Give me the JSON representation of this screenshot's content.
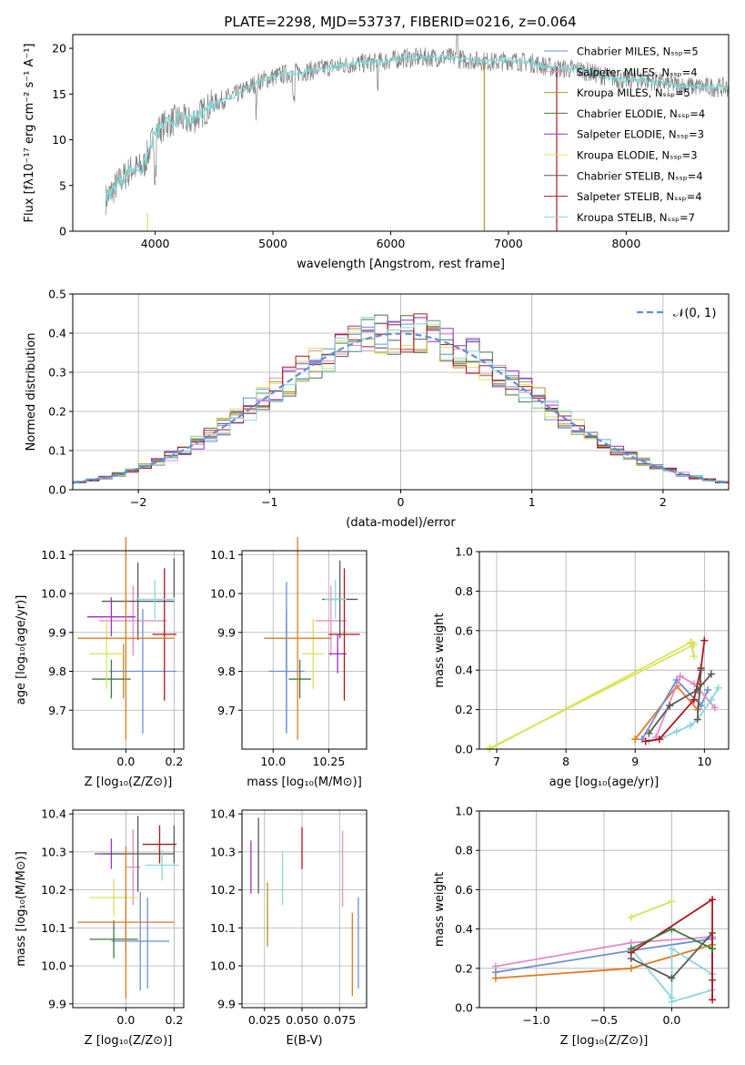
{
  "colors": {
    "cm": "#6a8fd8",
    "sm": "#e38cc5",
    "km": "#b8962b",
    "ce": "#3d7a3d",
    "se": "#9a2fc4",
    "ke": "#d8e35a",
    "cs": "#5a5a5a",
    "ss": "#b0141c",
    "ks": "#8ad6dc",
    "orange": "#e07a20",
    "gauss": "#5f90d8",
    "grid": "#b0b0b0",
    "spectrum": "#808080",
    "fit": "#7fd8d8"
  },
  "chart_data": [
    {
      "id": "spectrum",
      "type": "line",
      "title": "PLATE=2298, MJD=53737, FIBERID=0216, z=0.064",
      "xlabel": "wavelength [Angstrom, rest frame]",
      "ylabel": "Flux [fλ10⁻¹⁷ erg cm⁻² s⁻¹ A⁻¹]",
      "xlim": [
        3300,
        8870
      ],
      "ylim": [
        0,
        21.5
      ],
      "xticks": [
        "4000",
        "5000",
        "6000",
        "7000",
        "8000"
      ],
      "xtick_vals": [
        4000,
        5000,
        6000,
        7000,
        8000
      ],
      "yticks": [
        "0",
        "5",
        "10",
        "15",
        "20"
      ],
      "ytick_vals": [
        0,
        5,
        10,
        15,
        20
      ],
      "legend": [
        "Chabrier MILES, Nₛₛₚ=5",
        "Salpeter MILES, Nₛₛₚ=4",
        "Kroupa MILES, Nₛₛₚ=5",
        "Chabrier ELODIE, Nₛₛₚ=4",
        "Salpeter ELODIE, Nₛₛₚ=3",
        "Kroupa ELODIE, Nₛₛₚ=3",
        "Chabrier STELIB, Nₛₛₚ=4",
        "Salpeter STELIB, Nₛₛₚ=4",
        "Kroupa STELIB, Nₛₛₚ=7"
      ],
      "legend_keys": [
        "cm",
        "sm",
        "km",
        "ce",
        "se",
        "ke",
        "cs",
        "ss",
        "ks"
      ],
      "legend_placement": "top-right",
      "continuum_x": [
        3580,
        3700,
        3800,
        3900,
        4000,
        4100,
        4200,
        4300,
        4400,
        4500,
        4700,
        4900,
        5100,
        5300,
        5500,
        5700,
        5900,
        6100,
        6300,
        6500,
        6600,
        6700,
        6800,
        6900,
        7000,
        7200,
        7400,
        7600,
        7800,
        8000,
        8200,
        8400,
        8600,
        8870
      ],
      "continuum_y": [
        3.5,
        5.5,
        6.8,
        7.0,
        10.8,
        11.8,
        12.3,
        12.0,
        13.0,
        14.0,
        15.0,
        16.5,
        17.2,
        17.5,
        18.0,
        18.3,
        18.5,
        18.9,
        19.0,
        19.0,
        18.8,
        18.7,
        18.6,
        18.5,
        18.7,
        18.4,
        17.8,
        17.7,
        17.0,
        16.5,
        16.5,
        16.0,
        15.8,
        15.7
      ],
      "grid": false
    },
    {
      "id": "residuals",
      "type": "histogram",
      "xlabel": "(data-model)/error",
      "ylabel": "Normed distribution",
      "xlim": [
        -2.5,
        2.5
      ],
      "ylim": [
        0,
        0.5
      ],
      "xticks": [
        "−2",
        "−1",
        "0",
        "1",
        "2"
      ],
      "xtick_vals": [
        -2,
        -1,
        0,
        1,
        2
      ],
      "yticks": [
        "0.0",
        "0.1",
        "0.2",
        "0.3",
        "0.4",
        "0.5"
      ],
      "ytick_vals": [
        0,
        0.1,
        0.2,
        0.3,
        0.4,
        0.5
      ],
      "legend": [
        "𝒩(0, 1)"
      ],
      "legend_placement": "top-right",
      "bin_width": 0.1,
      "grid": true
    },
    {
      "id": "age-vs-Z",
      "type": "errorbar",
      "xlabel": "Z [log₁₀(Z/Z⊙)]",
      "ylabel": "age  [log₁₀(age/yr)]",
      "xlim": [
        -0.22,
        0.24
      ],
      "ylim": [
        9.6,
        10.11
      ],
      "xticks": [
        "0.0",
        "0.2"
      ],
      "xtick_vals": [
        0,
        0.2
      ],
      "yticks": [
        "9.7",
        "9.8",
        "9.9",
        "10.0",
        "10.1"
      ],
      "ytick_vals": [
        9.7,
        9.8,
        9.9,
        10.0,
        10.1
      ],
      "points": [
        {
          "c": "cm",
          "x": 0.07,
          "xe": 0.14,
          "y": 9.8,
          "ye": 0.16
        },
        {
          "c": "sm",
          "x": 0.03,
          "xe": 0.14,
          "y": 9.93,
          "ye": 0.09
        },
        {
          "c": "km",
          "x": -0.01,
          "xe": 0.0,
          "y": 9.8,
          "ye": 0.07
        },
        {
          "c": "ce",
          "x": -0.06,
          "xe": 0.08,
          "y": 9.78,
          "ye": 0.05
        },
        {
          "c": "se",
          "x": -0.06,
          "xe": 0.1,
          "y": 9.94,
          "ye": 0.05
        },
        {
          "c": "ke",
          "x": -0.08,
          "xe": 0.07,
          "y": 9.845,
          "ye": 0.09
        },
        {
          "c": "cs",
          "x": 0.05,
          "xe": 0.15,
          "y": 9.98,
          "ye": 0.1
        },
        {
          "c": "ss",
          "x": 0.16,
          "xe": 0.05,
          "y": 9.895,
          "ye": 0.17
        },
        {
          "c": "ks",
          "x": 0.12,
          "xe": 0.08,
          "y": 9.985,
          "ye": 0.05
        },
        {
          "c": "orange",
          "x": 0.0,
          "xe": 0.2,
          "y": 9.885,
          "ye": 0.26
        },
        {
          "c": "cs",
          "x": 0.2,
          "xe": 0.0,
          "y": 10.04,
          "ye": 0.05
        }
      ],
      "grid": true
    },
    {
      "id": "age-vs-mass",
      "type": "errorbar",
      "xlabel": "mass [log₁₀(M/M⊙)]",
      "ylabel": "",
      "xlim": [
        9.86,
        10.42
      ],
      "ylim": [
        9.6,
        10.11
      ],
      "xticks": [
        "10.0",
        "10.25"
      ],
      "xtick_vals": [
        10.0,
        10.25
      ],
      "yticks": [
        "9.7",
        "9.8",
        "9.9",
        "10.0",
        "10.1"
      ],
      "ytick_vals": [
        9.7,
        9.8,
        9.9,
        10.0,
        10.1
      ],
      "points": [
        {
          "c": "cm",
          "x": 10.06,
          "xe": 0.08,
          "y": 9.8,
          "ye": 0.16
        },
        {
          "c": "sm",
          "x": 10.26,
          "xe": 0.07,
          "y": 9.93,
          "ye": 0.09
        },
        {
          "c": "km",
          "x": 10.06,
          "xe": 0.0,
          "y": 9.86,
          "ye": 0.07
        },
        {
          "c": "ce",
          "x": 10.12,
          "xe": 0.05,
          "y": 9.78,
          "ye": 0.05
        },
        {
          "c": "se",
          "x": 10.29,
          "xe": 0.04,
          "y": 9.845,
          "ye": 0.05
        },
        {
          "c": "ke",
          "x": 10.18,
          "xe": 0.05,
          "y": 9.845,
          "ye": 0.09
        },
        {
          "c": "cs",
          "x": 10.3,
          "xe": 0.08,
          "y": 9.985,
          "ye": 0.1
        },
        {
          "c": "ss",
          "x": 10.32,
          "xe": 0.07,
          "y": 9.895,
          "ye": 0.17
        },
        {
          "c": "ks",
          "x": 10.28,
          "xe": 0.05,
          "y": 9.985,
          "ye": 0.05
        },
        {
          "c": "orange",
          "x": 10.11,
          "xe": 0.15,
          "y": 9.885,
          "ye": 0.26
        },
        {
          "c": "cm",
          "x": 10.06,
          "xe": 0.0,
          "y": 9.84,
          "ye": 0.19
        }
      ],
      "grid": true
    },
    {
      "id": "mw-vs-age",
      "type": "line",
      "xlabel": "age  [log₁₀(age/yr)]",
      "ylabel": "mass weight",
      "xlim": [
        6.75,
        10.35
      ],
      "ylim": [
        0,
        1
      ],
      "xticks": [
        "7",
        "8",
        "9",
        "10"
      ],
      "xtick_vals": [
        7,
        8,
        9,
        10
      ],
      "yticks": [
        "0.0",
        "0.2",
        "0.4",
        "0.6",
        "0.8",
        "1.0"
      ],
      "ytick_vals": [
        0,
        0.2,
        0.4,
        0.6,
        0.8,
        1.0
      ],
      "series": [
        {
          "c": "ke",
          "x": [
            6.9,
            9.8,
            9.85,
            9.82
          ],
          "y": [
            0.0,
            0.54,
            0.47,
            0.54
          ]
        },
        {
          "c": "ke",
          "x": [
            6.9,
            9.85
          ],
          "y": [
            0.005,
            0.53
          ]
        },
        {
          "c": "orange",
          "x": [
            9.0,
            9.6,
            9.9,
            9.95
          ],
          "y": [
            0.05,
            0.32,
            0.2,
            0.33
          ]
        },
        {
          "c": "cm",
          "x": [
            9.1,
            9.6,
            9.95,
            10.05
          ],
          "y": [
            0.05,
            0.35,
            0.22,
            0.3
          ]
        },
        {
          "c": "sm",
          "x": [
            9.3,
            9.65,
            9.85,
            10.15
          ],
          "y": [
            0.06,
            0.37,
            0.33,
            0.21
          ]
        },
        {
          "c": "ks",
          "x": [
            9.2,
            9.4,
            9.6,
            9.8,
            9.9,
            10.1,
            10.2
          ],
          "y": [
            0.04,
            0.06,
            0.09,
            0.12,
            0.15,
            0.25,
            0.31
          ]
        },
        {
          "c": "ss",
          "x": [
            9.15,
            9.35,
            9.85,
            9.95,
            10.0
          ],
          "y": [
            0.04,
            0.05,
            0.25,
            0.41,
            0.55
          ]
        },
        {
          "c": "cs",
          "x": [
            9.2,
            9.5,
            9.9,
            10.1
          ],
          "y": [
            0.08,
            0.22,
            0.3,
            0.38
          ]
        },
        {
          "c": "cs",
          "x": [
            9.9,
            9.95
          ],
          "y": [
            0.15,
            0.4
          ]
        }
      ],
      "grid": true
    },
    {
      "id": "mass-vs-Z",
      "type": "errorbar",
      "xlabel": "Z [log₁₀(Z/Z⊙)]",
      "ylabel": "mass [log₁₀(M/M⊙)]",
      "xlim": [
        -0.22,
        0.24
      ],
      "ylim": [
        9.89,
        10.41
      ],
      "xticks": [
        "0.0",
        "0.2"
      ],
      "xtick_vals": [
        0,
        0.2
      ],
      "yticks": [
        "9.9",
        "10.0",
        "10.1",
        "10.2",
        "10.3",
        "10.4"
      ],
      "ytick_vals": [
        9.9,
        10.0,
        10.1,
        10.2,
        10.3,
        10.4
      ],
      "points": [
        {
          "c": "cm",
          "x": 0.06,
          "xe": 0.12,
          "y": 10.065,
          "ye": 0.13
        },
        {
          "c": "sm",
          "x": 0.03,
          "xe": 0.03,
          "y": 10.26,
          "ye": 0.1
        },
        {
          "c": "km",
          "x": 0.0,
          "xe": 0.0,
          "y": 10.1,
          "ye": 0.07
        },
        {
          "c": "ce",
          "x": -0.05,
          "xe": 0.1,
          "y": 10.07,
          "ye": 0.05
        },
        {
          "c": "se",
          "x": -0.06,
          "xe": 0.07,
          "y": 10.295,
          "ye": 0.04
        },
        {
          "c": "ke",
          "x": -0.05,
          "xe": 0.1,
          "y": 10.18,
          "ye": 0.05
        },
        {
          "c": "cs",
          "x": 0.05,
          "xe": 0.15,
          "y": 10.295,
          "ye": 0.1
        },
        {
          "c": "ss",
          "x": 0.14,
          "xe": 0.07,
          "y": 10.32,
          "ye": 0.05
        },
        {
          "c": "ks",
          "x": 0.15,
          "xe": 0.07,
          "y": 10.265,
          "ye": 0.04
        },
        {
          "c": "orange",
          "x": 0.0,
          "xe": 0.2,
          "y": 10.115,
          "ye": 0.2
        },
        {
          "c": "cm",
          "x": 0.09,
          "xe": 0.0,
          "y": 10.06,
          "ye": 0.12
        },
        {
          "c": "cs",
          "x": 0.2,
          "xe": 0.0,
          "y": 10.32,
          "ye": 0.05
        }
      ],
      "grid": true
    },
    {
      "id": "mass-vs-EBV",
      "type": "errorbar",
      "xlabel": "E(B-V)",
      "ylabel": "",
      "xlim": [
        0.01,
        0.093
      ],
      "ylim": [
        9.89,
        10.41
      ],
      "xticks": [
        "0.025",
        "0.050",
        "0.075"
      ],
      "xtick_vals": [
        0.025,
        0.05,
        0.075
      ],
      "yticks": [
        "9.9",
        "10.0",
        "10.1",
        "10.2",
        "10.3",
        "10.4"
      ],
      "ytick_vals": [
        9.9,
        10.0,
        10.1,
        10.2,
        10.3,
        10.4
      ],
      "points": [
        {
          "c": "se",
          "x": 0.016,
          "xe": 0,
          "y": 10.26,
          "ye": 0.07
        },
        {
          "c": "cs",
          "x": 0.021,
          "xe": 0,
          "y": 10.29,
          "ye": 0.1
        },
        {
          "c": "ke",
          "x": 0.027,
          "xe": 0,
          "y": 10.11,
          "ye": 0.05
        },
        {
          "c": "km",
          "x": 0.027,
          "xe": 0,
          "y": 10.135,
          "ye": 0.085
        },
        {
          "c": "ks",
          "x": 0.037,
          "xe": 0,
          "y": 10.23,
          "ye": 0.07
        },
        {
          "c": "ss",
          "x": 0.05,
          "xe": 0,
          "y": 10.31,
          "ye": 0.055
        },
        {
          "c": "sm",
          "x": 0.077,
          "xe": 0,
          "y": 10.255,
          "ye": 0.1
        },
        {
          "c": "orange",
          "x": 0.0835,
          "xe": 0,
          "y": 10.03,
          "ye": 0.11
        },
        {
          "c": "cm",
          "x": 0.0875,
          "xe": 0,
          "y": 10.06,
          "ye": 0.12
        }
      ],
      "grid": true
    },
    {
      "id": "mw-vs-Z",
      "type": "line",
      "xlabel": "Z [log₁₀(Z/Z⊙)]",
      "ylabel": "mass weight",
      "xlim": [
        -1.42,
        0.42
      ],
      "ylim": [
        0,
        1
      ],
      "xticks": [
        "−1.0",
        "−0.5",
        "0.0"
      ],
      "xtick_vals": [
        -1.0,
        -0.5,
        0.0
      ],
      "yticks": [
        "0.0",
        "0.2",
        "0.4",
        "0.6",
        "0.8",
        "1.0"
      ],
      "ytick_vals": [
        0,
        0.2,
        0.4,
        0.6,
        0.8,
        1.0
      ],
      "series": [
        {
          "c": "sm",
          "x": [
            -1.3,
            -0.3,
            0.3
          ],
          "y": [
            0.21,
            0.33,
            0.36
          ]
        },
        {
          "c": "cm",
          "x": [
            -1.3,
            -0.3,
            0.3
          ],
          "y": [
            0.18,
            0.29,
            0.35
          ]
        },
        {
          "c": "orange",
          "x": [
            -1.3,
            -0.3,
            0.3
          ],
          "y": [
            0.15,
            0.2,
            0.32
          ]
        },
        {
          "c": "ke",
          "x": [
            -0.3,
            0.0
          ],
          "y": [
            0.46,
            0.54
          ]
        },
        {
          "c": "ks",
          "x": [
            -0.3,
            0.0,
            0.0,
            0.3,
            0.3,
            0.0
          ],
          "y": [
            0.3,
            0.05,
            0.3,
            0.17,
            0.09,
            0.03
          ]
        },
        {
          "c": "cs",
          "x": [
            -0.3,
            0.0,
            0.3,
            0.3
          ],
          "y": [
            0.25,
            0.15,
            0.38,
            0.14
          ]
        },
        {
          "c": "ss",
          "x": [
            -0.3,
            0.3,
            0.3
          ],
          "y": [
            0.28,
            0.55,
            0.04
          ]
        },
        {
          "c": "ce",
          "x": [
            -0.3,
            0.0,
            0.3
          ],
          "y": [
            0.3,
            0.4,
            0.3
          ]
        }
      ],
      "grid": true
    }
  ]
}
